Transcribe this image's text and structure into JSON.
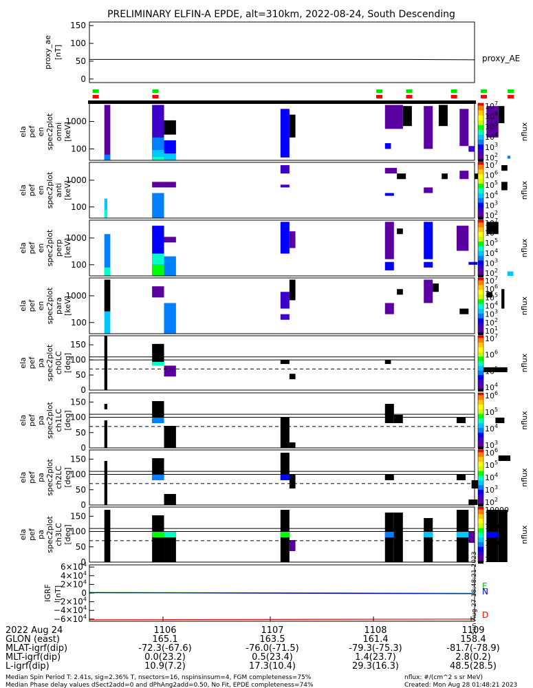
{
  "title": "PRELIMINARY ELFIN-A EPDE, alt=310km, 2022-08-24, South Descending",
  "colors": {
    "sunburst": [
      "#000000",
      "#5a00a0",
      "#3c00c8",
      "#0000ff",
      "#0080ff",
      "#00c8ff",
      "#00ffc8",
      "#00ff00",
      "#c8ff00",
      "#ffff00",
      "#ffc800",
      "#ff8000",
      "#ff0000"
    ],
    "flag_green": "#00e000",
    "flag_red": "#ff0000",
    "grf_E": "#00c000",
    "grf_N": "#0000c8",
    "grf_D": "#ff0000"
  },
  "footer": {
    "date_label": "2022 Aug 24",
    "rows": [
      {
        "label": "GLON (east)",
        "values": [
          "165.1",
          "163.5",
          "161.4",
          "158.4"
        ]
      },
      {
        "label": "MLAT-igrf(dip)",
        "values": [
          "-72.3(-67.6)",
          "-76.0(-71.5)",
          "-79.3(-75.3)",
          "-81.7(-78.9)"
        ]
      },
      {
        "label": "MLT-igrf(dip)",
        "values": [
          "0.0(23.2)",
          "0.5(23.4)",
          "1.4(23.7)",
          "2.8(0.2)"
        ]
      },
      {
        "label": "L-igrf(dip)",
        "values": [
          "10.9(7.2)",
          "17.3(10.4)",
          "29.3(16.3)",
          "48.5(28.5)"
        ]
      }
    ],
    "note_left_1": "Median Spin Period T: 2.41s, sig=2.36% T, nsectors=16, nspinsinsum=4, FGM completeness=75%",
    "note_left_2": "Median Phase delay values dSect2add=0 and dPhAng2add=0.50, No Fit, EPDE completeness=74%",
    "note_right_1": "nflux: #/(cm^2 s sr MeV)",
    "note_right_2": "Created: Mon Aug 28 01:48:21 2023",
    "side_stamp": "Sun Aug 27 18:48:21 2023"
  },
  "chart_data": {
    "type": "heatmap",
    "x_axis": {
      "ticks": [
        "1106",
        "1107",
        "1108",
        "1109"
      ],
      "range_seconds": [
        1096.3,
        1109.2
      ]
    },
    "panels": [
      {
        "ylabel": [
          "proxy_ae",
          "[nT]"
        ],
        "type": "line",
        "yticks": [
          "150",
          "100",
          "50",
          "0"
        ],
        "ylim": [
          -10,
          160
        ],
        "series_label": "proxy_AE",
        "x": [
          1096.3,
          1107.0,
          1109.2
        ],
        "values": [
          55,
          55,
          54
        ]
      },
      {
        "ylabel": [
          "ela",
          "pef",
          "en",
          "spec2plot",
          "omni",
          "[keV]"
        ],
        "type": "heatmap",
        "scale": "log",
        "yticks": [
          "1000",
          "100"
        ],
        "colorbar_ticks": [
          "10^7",
          "10^6",
          "10^5",
          "10^4",
          "10^3",
          "10^2"
        ],
        "colorbar_label": "nflux"
      },
      {
        "ylabel": [
          "ela",
          "pef",
          "en",
          "spec2plot",
          "anti",
          "[keV]"
        ],
        "type": "heatmap",
        "scale": "log",
        "yticks": [
          "1000",
          "100"
        ],
        "colorbar_ticks": [
          "10^7",
          "10^6",
          "10^5",
          "10^4",
          "10^3",
          "10^2"
        ],
        "colorbar_label": "nflux"
      },
      {
        "ylabel": [
          "ela",
          "pef",
          "en",
          "spec2plot",
          "perp",
          "[keV]"
        ],
        "type": "heatmap",
        "scale": "log",
        "yticks": [
          "1000",
          "100"
        ],
        "colorbar_ticks": [
          "10^7",
          "10^6",
          "10^5",
          "10^4",
          "10^3",
          "10^2"
        ],
        "colorbar_label": "nflux"
      },
      {
        "ylabel": [
          "ela",
          "pef",
          "en",
          "spec2plot",
          "para",
          "[keV]"
        ],
        "type": "heatmap",
        "scale": "log",
        "yticks": [
          "1000",
          "100"
        ],
        "colorbar_ticks": [
          "10^7",
          "10^6",
          "10^5",
          "10^4",
          "10^3",
          "10^2",
          "10^1"
        ],
        "colorbar_label": "nflux"
      },
      {
        "ylabel": [
          "ela",
          "pef",
          "pa",
          "spec2plot",
          "ch0LC",
          "[deg]"
        ],
        "type": "heatmap",
        "yticks": [
          "150",
          "100",
          "50",
          "0"
        ],
        "ylim": [
          0,
          180
        ],
        "reference_lines": [
          110,
          100
        ],
        "dashed_line": 70,
        "colorbar_ticks": [
          "10^7",
          "10^6",
          "10^5",
          "10^4"
        ],
        "colorbar_label": "nflux"
      },
      {
        "ylabel": [
          "ela",
          "pef",
          "pa",
          "spec2plot",
          "ch1LC",
          "[deg]"
        ],
        "type": "heatmap",
        "yticks": [
          "150",
          "100",
          "50",
          "0"
        ],
        "ylim": [
          0,
          180
        ],
        "reference_lines": [
          110,
          100
        ],
        "dashed_line": 70,
        "colorbar_ticks": [
          "10^6",
          "10^5",
          "10^4",
          "10^3"
        ],
        "colorbar_label": "nflux"
      },
      {
        "ylabel": [
          "ela",
          "pef",
          "pa",
          "spec2plot",
          "ch2LC",
          "[deg]"
        ],
        "type": "heatmap",
        "yticks": [
          "150",
          "100",
          "50",
          "0"
        ],
        "ylim": [
          0,
          180
        ],
        "reference_lines": [
          110,
          100
        ],
        "dashed_line": 70,
        "colorbar_ticks": [
          "10^6",
          "10^5",
          "10^4",
          "10^3",
          "10^2"
        ],
        "colorbar_label": "nflux"
      },
      {
        "ylabel": [
          "ela",
          "pef",
          "pa",
          "spec2plot",
          "ch3LC",
          "[deg]"
        ],
        "type": "heatmap",
        "yticks": [
          "150",
          "100",
          "50",
          "0"
        ],
        "ylim": [
          0,
          180
        ],
        "reference_lines": [
          110,
          100
        ],
        "dashed_line": 70,
        "colorbar_ticks": [
          "10000",
          "1000",
          "100",
          "10"
        ],
        "colorbar_label": "nflux"
      },
      {
        "ylabel": [
          "IGRF",
          "[nT]"
        ],
        "type": "line",
        "yticks": [
          "6×10^4",
          "4×10^4",
          "2×10^4",
          "0",
          "−2×10^4",
          "−4×10^4",
          "−6×10^4"
        ],
        "ylim": [
          -65000,
          65000
        ],
        "series": [
          {
            "name": "E",
            "x": [
              1096.3,
              1109.2
            ],
            "values": [
              1500,
              -500
            ]
          },
          {
            "name": "N",
            "x": [
              1096.3,
              1109.2
            ],
            "values": [
              800,
              -1500
            ]
          },
          {
            "name": "D",
            "x": [
              1096.3,
              1109.2
            ],
            "values": [
              -61500,
              -60000
            ]
          }
        ]
      }
    ]
  }
}
